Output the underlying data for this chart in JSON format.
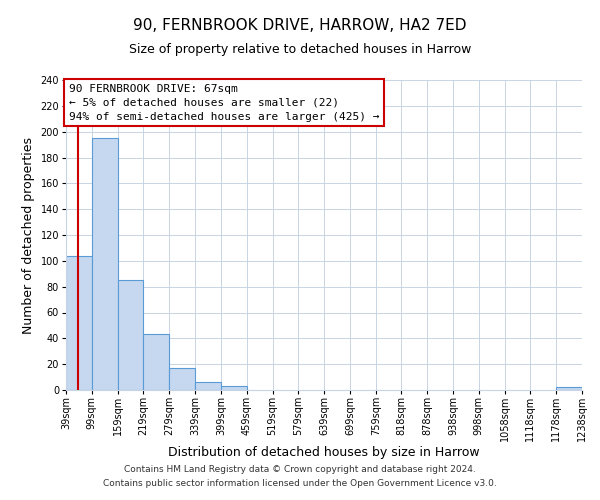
{
  "title": "90, FERNBROOK DRIVE, HARROW, HA2 7ED",
  "subtitle": "Size of property relative to detached houses in Harrow",
  "xlabel": "Distribution of detached houses by size in Harrow",
  "ylabel": "Number of detached properties",
  "annotation_line1": "90 FERNBROOK DRIVE: 67sqm",
  "annotation_line2": "← 5% of detached houses are smaller (22)",
  "annotation_line3": "94% of semi-detached houses are larger (425) →",
  "footer_line1": "Contains HM Land Registry data © Crown copyright and database right 2024.",
  "footer_line2": "Contains public sector information licensed under the Open Government Licence v3.0.",
  "bar_edges": [
    39,
    99,
    159,
    219,
    279,
    339,
    399,
    459,
    519,
    579,
    639,
    699,
    759,
    818,
    878,
    938,
    998,
    1058,
    1118,
    1178,
    1238
  ],
  "bar_heights": [
    104,
    195,
    85,
    43,
    17,
    6,
    3,
    0,
    0,
    0,
    0,
    0,
    0,
    0,
    0,
    0,
    0,
    0,
    0,
    2
  ],
  "bar_color": "#c5d8f0",
  "bar_edge_color": "#5b9bd5",
  "red_line_x": 67,
  "ylim": [
    0,
    240
  ],
  "yticks": [
    0,
    20,
    40,
    60,
    80,
    100,
    120,
    140,
    160,
    180,
    200,
    220,
    240
  ],
  "tick_labels": [
    "39sqm",
    "99sqm",
    "159sqm",
    "219sqm",
    "279sqm",
    "339sqm",
    "399sqm",
    "459sqm",
    "519sqm",
    "579sqm",
    "639sqm",
    "699sqm",
    "759sqm",
    "818sqm",
    "878sqm",
    "938sqm",
    "998sqm",
    "1058sqm",
    "1118sqm",
    "1178sqm",
    "1238sqm"
  ],
  "background_color": "#ffffff",
  "grid_color": "#c8d4e3",
  "annotation_box_color": "#ffffff",
  "annotation_box_edge": "#cc0000",
  "title_fontsize": 11,
  "subtitle_fontsize": 9,
  "axis_label_fontsize": 9,
  "tick_fontsize": 7,
  "annotation_fontsize": 8,
  "footer_fontsize": 6.5
}
